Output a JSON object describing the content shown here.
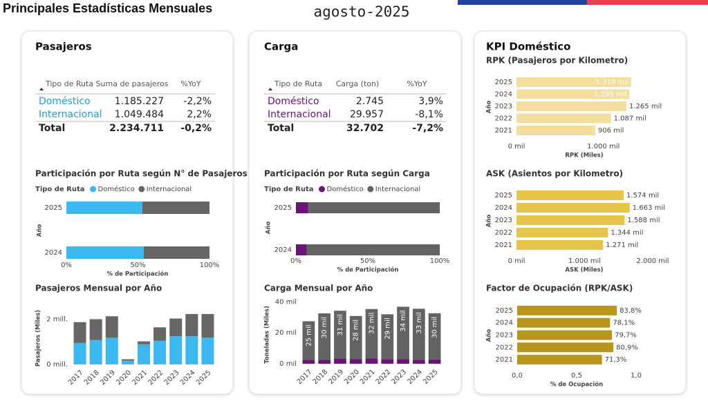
{
  "header": {
    "title": "Principales Estadísticas Mensuales",
    "date": "agosto-2025"
  },
  "panels": [
    {
      "title": "Pasajeros",
      "table": {
        "columns": [
          "Tipo de Ruta",
          "Suma de pasajeros",
          "%YoY"
        ],
        "row_label_color": "#1a9fd9",
        "rows": [
          [
            "Doméstico",
            "1.185.227",
            "-2,2%"
          ],
          [
            "Internacional",
            "1.049.484",
            "2,2%"
          ]
        ],
        "total": [
          "Total",
          "2.234.711",
          "-0,2%"
        ]
      }
    },
    {
      "title": "Carga",
      "table": {
        "columns": [
          "Tipo de Ruta",
          "Carga (ton)",
          "%YoY"
        ],
        "row_label_color": "#6b1477",
        "rows": [
          [
            "Doméstico",
            "2.745",
            "3,9%"
          ],
          [
            "Internacional",
            "29.957",
            "-8,1%"
          ]
        ],
        "total": [
          "Total",
          "32.702",
          "-7,2%"
        ]
      }
    },
    {
      "title": "KPI Doméstico"
    }
  ],
  "chart_data": [
    {
      "type": "bar",
      "orientation": "horizontal",
      "stacked": true,
      "title": "Participación por Ruta según N° de Pasajeros",
      "legend_title": "Tipo de Ruta",
      "categories": [
        "2025",
        "2024"
      ],
      "y_label": "Año",
      "x_label": "% de Participación",
      "series": [
        {
          "name": "Doméstico",
          "color": "#3cb8f0",
          "values": [
            53.0,
            54.1
          ]
        },
        {
          "name": "Internacional",
          "color": "#666666",
          "values": [
            47.0,
            45.9
          ]
        }
      ],
      "xlim": [
        0,
        100
      ],
      "xticks": [
        {
          "value": 0,
          "label": "0%"
        },
        {
          "value": 50,
          "label": "50%"
        },
        {
          "value": 100,
          "label": "100%"
        }
      ]
    },
    {
      "type": "bar",
      "orientation": "horizontal",
      "stacked": true,
      "title": "Participación por Ruta según Carga",
      "legend_title": "Tipo de Ruta",
      "categories": [
        "2025",
        "2024"
      ],
      "y_label": "Año",
      "x_label": "% de Participación",
      "series": [
        {
          "name": "Doméstico",
          "color": "#6b1477",
          "values": [
            8.4,
            7.5
          ]
        },
        {
          "name": "Internacional",
          "color": "#636363",
          "values": [
            91.6,
            92.5
          ]
        }
      ],
      "xlim": [
        0,
        100
      ],
      "xticks": [
        {
          "value": 0,
          "label": "0%"
        },
        {
          "value": 50,
          "label": "50%"
        },
        {
          "value": 100,
          "label": "100%"
        }
      ]
    },
    {
      "type": "bar",
      "orientation": "vertical",
      "stacked": true,
      "title": "Pasajeros Mensual por Año",
      "y_label": "Pasajeros (Miles)",
      "categories": [
        "2017",
        "2018",
        "2019",
        "2020",
        "2021",
        "2022",
        "2023",
        "2024",
        "2025"
      ],
      "series": [
        {
          "name": "Doméstico",
          "color": "#3cb8f0",
          "values": [
            950,
            1080,
            1180,
            160,
            890,
            1050,
            1250,
            1250,
            1190
          ]
        },
        {
          "name": "Internacional",
          "color": "#666666",
          "values": [
            920,
            920,
            950,
            70,
            130,
            590,
            780,
            980,
            1040
          ]
        }
      ],
      "ylim": [
        0,
        2900
      ],
      "yticks": [
        {
          "value": 0,
          "label": "0 mill."
        },
        {
          "value": 2000,
          "label": "2 mill."
        }
      ]
    },
    {
      "type": "bar",
      "orientation": "vertical",
      "stacked": true,
      "title": "Carga Mensual por Año",
      "y_label": "Toneladas (Miles)",
      "categories": [
        "2017",
        "2018",
        "2019",
        "2020",
        "2021",
        "2022",
        "2023",
        "2024",
        "2025"
      ],
      "series": [
        {
          "name": "Doméstico",
          "color": "#6b1477",
          "values": [
            2.5,
            2.6,
            3.3,
            2.9,
            3.4,
            3.0,
            2.9,
            2.6,
            2.7
          ]
        },
        {
          "name": "Internacional",
          "color": "#636363",
          "values": [
            25,
            30,
            31,
            28,
            32,
            29,
            34,
            33,
            30
          ],
          "value_labels": [
            "25 mil",
            "30 mil",
            "31 mil",
            "28 mil",
            "32 mil",
            "29 mil",
            "34 mil",
            "33 mil",
            "30 mil"
          ]
        }
      ],
      "ylim": [
        0,
        42
      ],
      "yticks": [
        {
          "value": 0,
          "label": "0 mil"
        },
        {
          "value": 20,
          "label": "20 mil"
        },
        {
          "value": 40,
          "label": "40 mil"
        }
      ]
    },
    {
      "type": "bar",
      "orientation": "horizontal",
      "title": "RPK (Pasajeros por Kilometro)",
      "y_label": "Año",
      "x_label": "RPK (Miles)",
      "categories": [
        "2025",
        "2024",
        "2023",
        "2022",
        "2021"
      ],
      "color": "#f3de9c",
      "values": [
        1319,
        1299,
        1265,
        1087,
        906
      ],
      "value_labels": [
        "1.319 mil",
        "1.299 mil",
        "1.265 mil",
        "1.087 mil",
        "906 mil"
      ],
      "xlim": [
        0,
        1400
      ],
      "xticks": [
        {
          "value": 0,
          "label": "0 mil"
        },
        {
          "value": 1000,
          "label": "1.000 mil"
        }
      ]
    },
    {
      "type": "bar",
      "orientation": "horizontal",
      "title": "ASK (Asientos por Kilometro)",
      "y_label": "Año",
      "x_label": "ASK (Miles)",
      "categories": [
        "2025",
        "2024",
        "2023",
        "2022",
        "2021"
      ],
      "color": "#e6c549",
      "values": [
        1574,
        1663,
        1588,
        1344,
        1271
      ],
      "value_labels": [
        "1.574 mil",
        "1.663 mil",
        "1.588 mil",
        "1.344 mil",
        "1.271 mil"
      ],
      "xlim": [
        0,
        2000
      ],
      "xticks": [
        {
          "value": 0,
          "label": "0 mil"
        },
        {
          "value": 1000,
          "label": "1.000 mil"
        },
        {
          "value": 2000,
          "label": "2.000 mil"
        }
      ]
    },
    {
      "type": "bar",
      "orientation": "horizontal",
      "title": "Factor de Ocupación (RPK/ASK)",
      "y_label": "Año",
      "x_label": "% de Ocupación",
      "categories": [
        "2025",
        "2024",
        "2023",
        "2022",
        "2021"
      ],
      "color": "#b8961c",
      "values": [
        0.838,
        0.781,
        0.797,
        0.809,
        0.713
      ],
      "value_labels": [
        "83,8%",
        "78,1%",
        "79,7%",
        "80,9%",
        "71,3%"
      ],
      "xlim": [
        0,
        1
      ],
      "xticks": [
        {
          "value": 0,
          "label": "0,0"
        },
        {
          "value": 0.5,
          "label": "0,5"
        },
        {
          "value": 1,
          "label": "1,0"
        }
      ]
    }
  ]
}
